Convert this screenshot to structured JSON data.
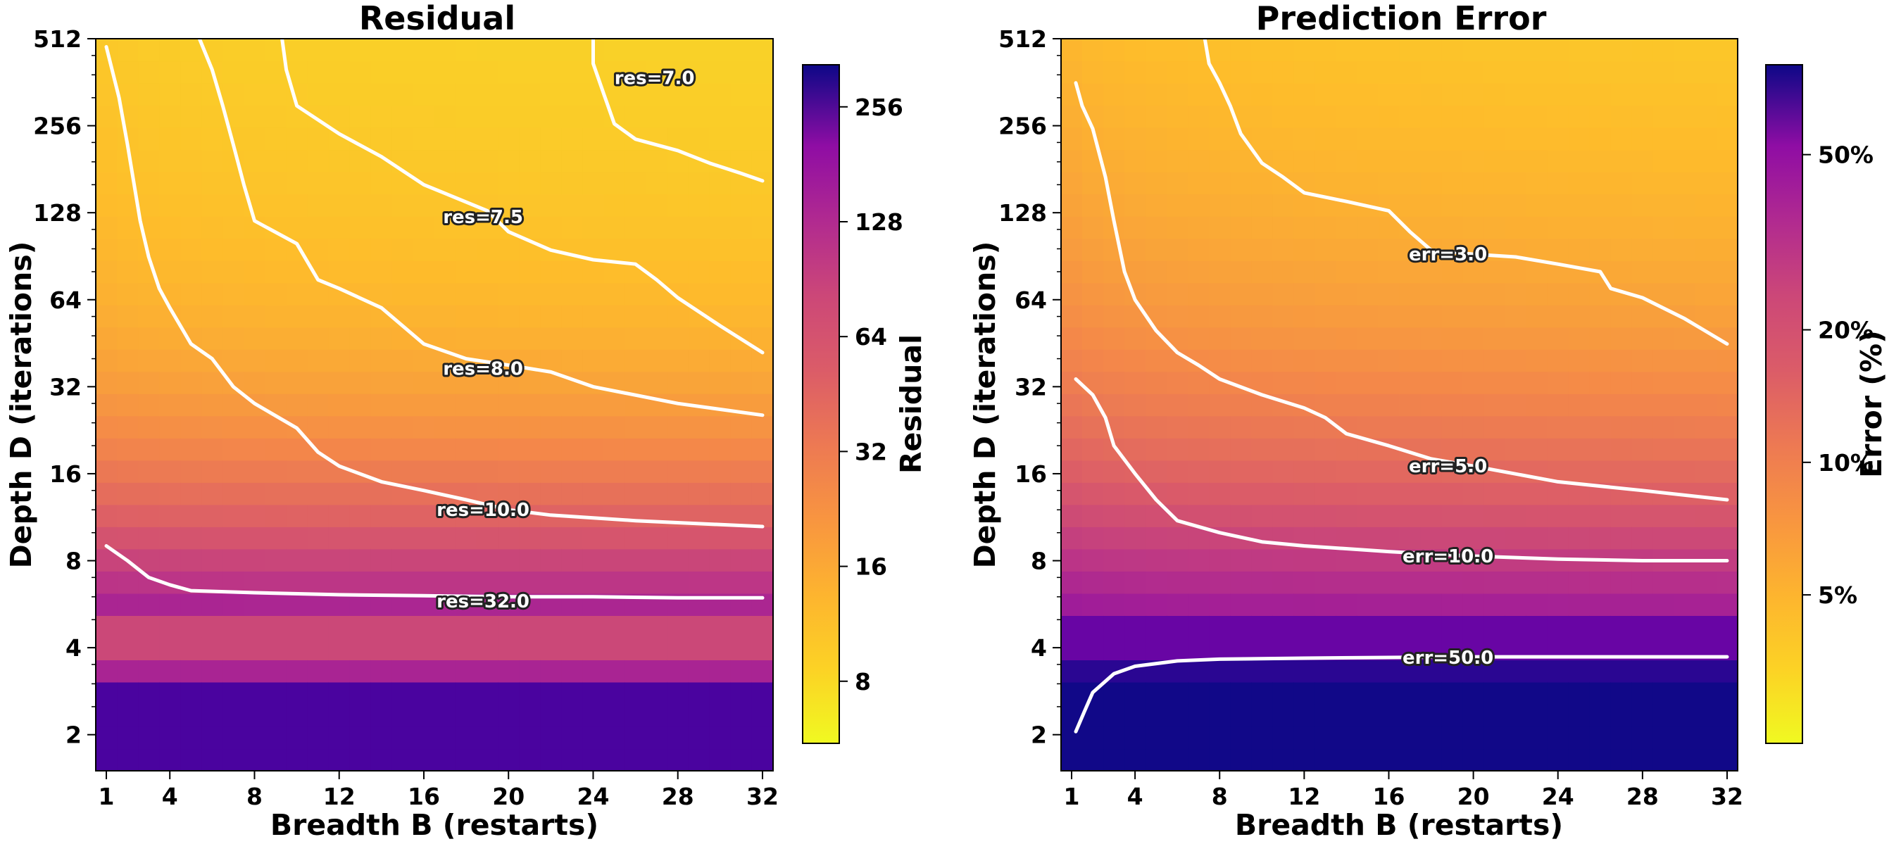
{
  "chart_data": [
    {
      "type": "heatmap",
      "title": "Residual",
      "xlabel": "Breadth B (restarts)",
      "ylabel": "Depth D (iterations)",
      "x_ticks": [
        1,
        4,
        8,
        12,
        16,
        20,
        24,
        28,
        32
      ],
      "y_ticks": [
        2,
        4,
        8,
        16,
        32,
        64,
        128,
        256,
        512
      ],
      "xlim": [
        0.5,
        32.5
      ],
      "ylim": [
        1.5,
        512
      ],
      "y_scale": "log2",
      "grid": false,
      "colormap": "plasma_r",
      "colorbar": {
        "label": "Residual",
        "scale": "log",
        "range": [
          5.5,
          330
        ],
        "ticks": [
          "8",
          "16",
          "32",
          "64",
          "128",
          "256"
        ],
        "tick_values": [
          8,
          16,
          32,
          64,
          128,
          256
        ]
      },
      "contours": [
        {
          "label": "res=7.0",
          "level": 7.0,
          "label_at": [
            26.9,
            375
          ],
          "points": [
            [
              24,
              512
            ],
            [
              24,
              420
            ],
            [
              24.5,
              330
            ],
            [
              25,
              260
            ],
            [
              26,
              230
            ],
            [
              28,
              210
            ],
            [
              29.5,
              190
            ],
            [
              31,
              175
            ],
            [
              32,
              165
            ]
          ]
        },
        {
          "label": "res=7.5",
          "level": 7.5,
          "label_at": [
            18.8,
            124
          ],
          "points": [
            [
              9.3,
              512
            ],
            [
              9.5,
              400
            ],
            [
              10,
              300
            ],
            [
              12,
              240
            ],
            [
              14,
              200
            ],
            [
              16,
              160
            ],
            [
              19,
              130
            ],
            [
              20,
              110
            ],
            [
              22,
              95
            ],
            [
              24,
              88
            ],
            [
              26,
              85
            ],
            [
              27,
              75
            ],
            [
              28,
              65
            ],
            [
              30,
              52
            ],
            [
              32,
              42
            ]
          ]
        },
        {
          "label": "res=8.0",
          "level": 8.0,
          "label_at": [
            18.8,
            37
          ],
          "points": [
            [
              5.4,
              512
            ],
            [
              6,
              400
            ],
            [
              6.5,
              300
            ],
            [
              7,
              220
            ],
            [
              7.5,
              160
            ],
            [
              8,
              120
            ],
            [
              10,
              100
            ],
            [
              11,
              75
            ],
            [
              12,
              70
            ],
            [
              14,
              60
            ],
            [
              16,
              45
            ],
            [
              18,
              40
            ],
            [
              20,
              38
            ],
            [
              22,
              36
            ],
            [
              24,
              32
            ],
            [
              28,
              28
            ],
            [
              32,
              25.5
            ]
          ]
        },
        {
          "label": "res=10.0",
          "level": 10.0,
          "label_at": [
            18.8,
            12
          ],
          "points": [
            [
              1,
              480
            ],
            [
              1.6,
              320
            ],
            [
              2,
              220
            ],
            [
              2.6,
              120
            ],
            [
              3,
              90
            ],
            [
              3.5,
              70
            ],
            [
              4,
              60
            ],
            [
              5,
              45
            ],
            [
              6,
              40
            ],
            [
              7,
              32
            ],
            [
              8,
              28
            ],
            [
              10,
              23
            ],
            [
              11,
              19
            ],
            [
              12,
              17
            ],
            [
              14,
              15
            ],
            [
              16,
              14
            ],
            [
              18,
              13
            ],
            [
              20,
              12
            ],
            [
              22,
              11.5
            ],
            [
              26,
              11
            ],
            [
              32,
              10.5
            ]
          ]
        },
        {
          "label": "res=32.0",
          "level": 32.0,
          "label_at": [
            18.8,
            5.8
          ],
          "points": [
            [
              1,
              9
            ],
            [
              2,
              8
            ],
            [
              3,
              7
            ],
            [
              4,
              6.6
            ],
            [
              5,
              6.3
            ],
            [
              8,
              6.2
            ],
            [
              12,
              6.1
            ],
            [
              16,
              6.05
            ],
            [
              20,
              6.0
            ],
            [
              24,
              6.0
            ],
            [
              28,
              5.95
            ],
            [
              32,
              5.95
            ]
          ]
        }
      ]
    },
    {
      "type": "heatmap",
      "title": "Prediction Error",
      "xlabel": "Breadth B (restarts)",
      "ylabel": "Depth D (iterations)",
      "x_ticks": [
        1,
        4,
        8,
        12,
        16,
        20,
        24,
        28,
        32
      ],
      "y_ticks": [
        2,
        4,
        8,
        16,
        32,
        64,
        128,
        256,
        512
      ],
      "xlim": [
        0.5,
        32.5
      ],
      "ylim": [
        1.5,
        512
      ],
      "y_scale": "log2",
      "grid": false,
      "colormap": "plasma_r",
      "colorbar": {
        "label": "Error (%)",
        "scale": "log",
        "range": [
          2.3,
          80
        ],
        "ticks": [
          "5%",
          "10%",
          "20%",
          "50%"
        ],
        "tick_values": [
          5,
          10,
          20,
          50
        ]
      },
      "contours": [
        {
          "label": "err=3.0",
          "level": 3.0,
          "label_at": [
            18.8,
            92
          ],
          "points": [
            [
              7.3,
              512
            ],
            [
              7.5,
              420
            ],
            [
              8,
              360
            ],
            [
              8.5,
              300
            ],
            [
              9,
              240
            ],
            [
              10,
              190
            ],
            [
              11,
              170
            ],
            [
              12,
              150
            ],
            [
              14,
              140
            ],
            [
              16,
              130
            ],
            [
              17,
              110
            ],
            [
              18,
              95
            ],
            [
              20,
              92
            ],
            [
              22,
              90
            ],
            [
              24,
              85
            ],
            [
              26,
              80
            ],
            [
              26.5,
              70
            ],
            [
              28,
              65
            ],
            [
              30,
              55
            ],
            [
              32,
              45
            ]
          ]
        },
        {
          "label": "err=5.0",
          "level": 5.0,
          "label_at": [
            18.8,
            17
          ],
          "points": [
            [
              1.2,
              360
            ],
            [
              1.5,
              300
            ],
            [
              2,
              250
            ],
            [
              2.6,
              170
            ],
            [
              3,
              120
            ],
            [
              3.5,
              80
            ],
            [
              4,
              64
            ],
            [
              5,
              50
            ],
            [
              6,
              42
            ],
            [
              7,
              38
            ],
            [
              8,
              34
            ],
            [
              10,
              30
            ],
            [
              12,
              27
            ],
            [
              13,
              25
            ],
            [
              14,
              22
            ],
            [
              16,
              20
            ],
            [
              18,
              18
            ],
            [
              20,
              17
            ],
            [
              24,
              15
            ],
            [
              28,
              14
            ],
            [
              32,
              13
            ]
          ]
        },
        {
          "label": "err=10.0",
          "level": 10.0,
          "label_at": [
            18.8,
            8.3
          ],
          "points": [
            [
              1.2,
              34
            ],
            [
              2,
              30
            ],
            [
              2.6,
              25
            ],
            [
              3,
              20
            ],
            [
              4,
              16
            ],
            [
              5,
              13
            ],
            [
              6,
              11
            ],
            [
              8,
              10
            ],
            [
              10,
              9.3
            ],
            [
              12,
              9.0
            ],
            [
              16,
              8.6
            ],
            [
              20,
              8.3
            ],
            [
              24,
              8.1
            ],
            [
              28,
              8.0
            ],
            [
              32,
              8.0
            ]
          ]
        },
        {
          "label": "err=50.0",
          "level": 50.0,
          "label_at": [
            18.8,
            3.7
          ],
          "points": [
            [
              1.2,
              2.05
            ],
            [
              1.6,
              2.4
            ],
            [
              2,
              2.8
            ],
            [
              3,
              3.25
            ],
            [
              4,
              3.45
            ],
            [
              6,
              3.6
            ],
            [
              8,
              3.65
            ],
            [
              12,
              3.68
            ],
            [
              16,
              3.7
            ],
            [
              20,
              3.72
            ],
            [
              24,
              3.72
            ],
            [
              28,
              3.72
            ],
            [
              32,
              3.72
            ]
          ]
        }
      ]
    }
  ]
}
